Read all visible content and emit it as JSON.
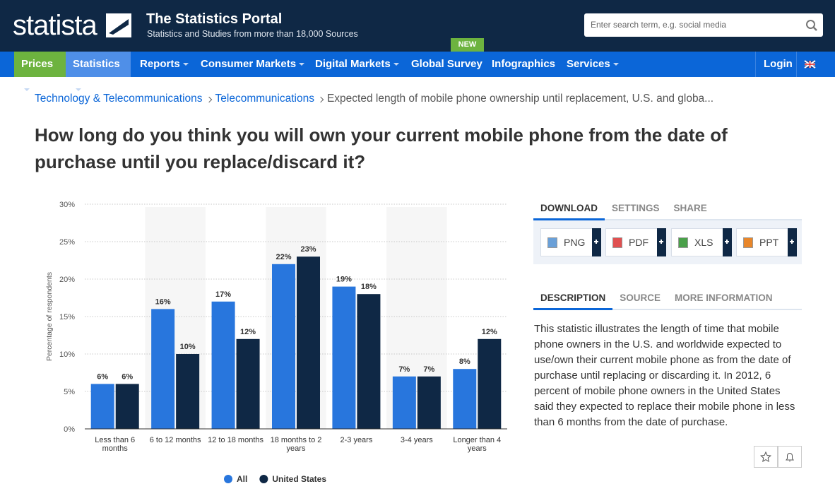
{
  "header": {
    "logo": "statista",
    "title": "The Statistics Portal",
    "subtitle": "Statistics and Studies from more than 18,000 Sources",
    "search_placeholder": "Enter search term, e.g. social media"
  },
  "nav": {
    "items": [
      "Prices",
      "Statistics",
      "Reports",
      "Consumer Markets",
      "Digital Markets",
      "Global Survey",
      "Infographics",
      "Services"
    ],
    "badge": "NEW",
    "login": "Login"
  },
  "breadcrumb": [
    "Technology & Telecommunications",
    "Telecommunications",
    "Expected length of mobile phone ownership until replacement, U.S. and globa..."
  ],
  "headline": "How long do you think you will own your current mobile phone from the date of purchase until you replace/discard it?",
  "chart_data": {
    "type": "bar",
    "ylabel": "Percentage of respondents",
    "categories": [
      "Less than 6 months",
      "6 to 12 months",
      "12 to 18 months",
      "18 months to 2 years",
      "2-3 years",
      "3-4 years",
      "Longer than 4 years"
    ],
    "series": [
      {
        "name": "All",
        "color": "#2876dd",
        "values": [
          6,
          16,
          17,
          22,
          19,
          7,
          8
        ],
        "value_labels": [
          "6%",
          "16%",
          "17%",
          "22%",
          "19%",
          "7%",
          "8%"
        ]
      },
      {
        "name": "United States",
        "color": "#0f2845",
        "values": [
          6,
          10,
          12,
          23,
          18,
          7,
          12
        ],
        "value_labels": [
          "6%",
          "10%",
          "12%",
          "23%",
          "18%",
          "7%",
          "12%"
        ]
      }
    ],
    "ylim": [
      0,
      30
    ],
    "yticks": [
      {
        "value": 0,
        "label": "0%"
      },
      {
        "value": 5,
        "label": "5%"
      },
      {
        "value": 10,
        "label": "10%"
      },
      {
        "value": 15,
        "label": "15%"
      },
      {
        "value": 20,
        "label": "20%"
      },
      {
        "value": 25,
        "label": "25%"
      },
      {
        "value": 30,
        "label": "30%"
      }
    ],
    "grid": true,
    "legend": "bottom"
  },
  "panel": {
    "tabs": [
      "DOWNLOAD",
      "SETTINGS",
      "SHARE"
    ],
    "downloads": [
      "PNG",
      "PDF",
      "XLS",
      "PPT"
    ],
    "info_tabs": [
      "DESCRIPTION",
      "SOURCE",
      "MORE INFORMATION"
    ],
    "description": "This statistic illustrates the length of time that mobile phone owners in the U.S. and worldwide expected to use/own their current mobile phone as from the date of purchase until replacing or discarding it. In 2012, 6 percent of mobile phone owners in the United States said they expected to replace their mobile phone in less than 6 months from the date of purchase."
  }
}
